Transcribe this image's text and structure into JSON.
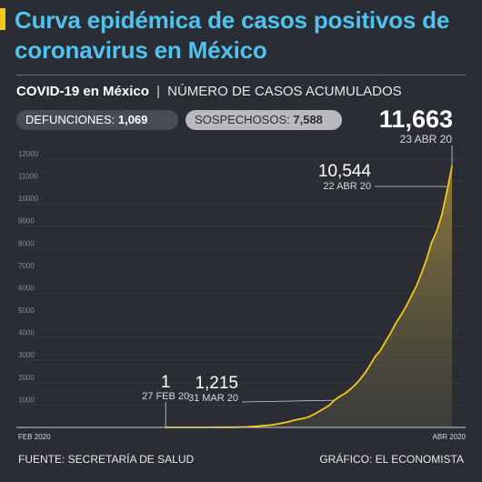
{
  "title": "Curva epidémica de casos positivos de coronavirus en México",
  "subtitle": {
    "bold": "COVID-19 en México",
    "separator": "|",
    "light": "NÚMERO DE CASOS ACUMULADOS"
  },
  "pills": {
    "defunciones_label": "DEFUNCIONES:",
    "defunciones_value": "1,069",
    "sospechosos_label": "SOSPECHOSOS:",
    "sospechosos_value": "7,588"
  },
  "total": {
    "value": "11,663",
    "date": "23 ABR 20"
  },
  "footer": {
    "source": "FUENTE: SECRETARÍA DE SALUD",
    "credit": "GRÁFICO: EL ECONOMISTA"
  },
  "colors": {
    "title": "#4ec3f0",
    "accent": "#f5c518",
    "line": "#f5c518",
    "background": "#2b2d35"
  },
  "chart_data": {
    "type": "area",
    "title": "",
    "xlabel": "",
    "ylabel": "",
    "x_tick_labels": [
      "FEB 2020",
      "ABR 2020"
    ],
    "y_ticks": [
      1000,
      2000,
      3000,
      4000,
      5000,
      6000,
      7000,
      8000,
      9000,
      10000,
      11000,
      12000
    ],
    "ylim": [
      0,
      12200
    ],
    "grid": true,
    "x": [
      "2020-02-27",
      "2020-02-29",
      "2020-03-03",
      "2020-03-06",
      "2020-03-09",
      "2020-03-11",
      "2020-03-13",
      "2020-03-14",
      "2020-03-15",
      "2020-03-16",
      "2020-03-17",
      "2020-03-18",
      "2020-03-19",
      "2020-03-20",
      "2020-03-21",
      "2020-03-22",
      "2020-03-23",
      "2020-03-24",
      "2020-03-25",
      "2020-03-26",
      "2020-03-27",
      "2020-03-28",
      "2020-03-29",
      "2020-03-30",
      "2020-03-31",
      "2020-04-01",
      "2020-04-02",
      "2020-04-03",
      "2020-04-04",
      "2020-04-05",
      "2020-04-06",
      "2020-04-07",
      "2020-04-08",
      "2020-04-09",
      "2020-04-10",
      "2020-04-11",
      "2020-04-12",
      "2020-04-13",
      "2020-04-14",
      "2020-04-15",
      "2020-04-16",
      "2020-04-17",
      "2020-04-18",
      "2020-04-19",
      "2020-04-20",
      "2020-04-21",
      "2020-04-22",
      "2020-04-23"
    ],
    "values": [
      1,
      4,
      5,
      6,
      7,
      8,
      15,
      26,
      41,
      53,
      82,
      93,
      118,
      164,
      203,
      251,
      316,
      367,
      405,
      475,
      585,
      717,
      848,
      993,
      1215,
      1378,
      1510,
      1688,
      1890,
      2143,
      2439,
      2785,
      3181,
      3441,
      3844,
      4219,
      4661,
      5014,
      5399,
      5847,
      6297,
      6875,
      7497,
      8261,
      8772,
      9501,
      10544,
      11663
    ],
    "annotations": [
      {
        "value": "1",
        "date": "27 FEB 20"
      },
      {
        "value": "1,215",
        "date": "31 MAR 20"
      },
      {
        "value": "10,544",
        "date": "22 ABR 20"
      }
    ]
  }
}
